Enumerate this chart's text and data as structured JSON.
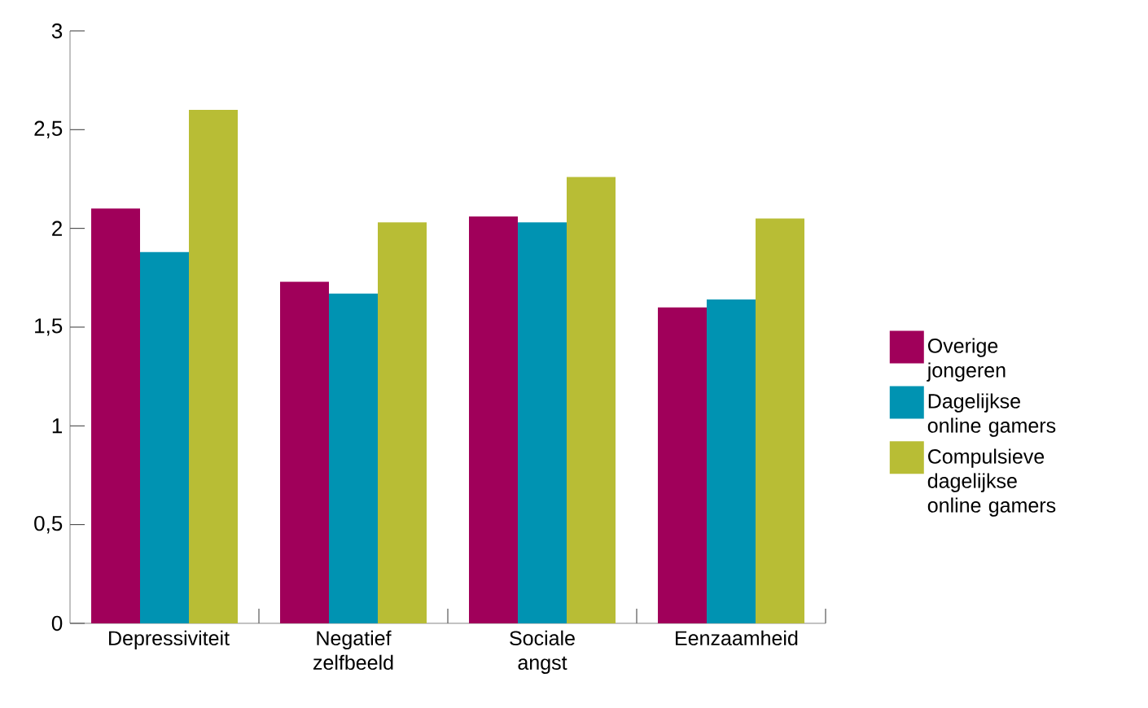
{
  "chart_data": {
    "type": "bar",
    "categories": [
      "Depressiviteit",
      "Negatief zelfbeeld",
      "Sociale angst",
      "Eenzaamheid"
    ],
    "series": [
      {
        "name": "Overige jongeren",
        "color": "#a0005a",
        "values": [
          2.1,
          1.73,
          2.06,
          1.6
        ]
      },
      {
        "name": "Dagelijkse online gamers",
        "color": "#0093b2",
        "values": [
          1.88,
          1.67,
          2.03,
          1.64
        ]
      },
      {
        "name": "Compulsieve dagelijkse online gamers",
        "color": "#b8bd35",
        "values": [
          2.6,
          2.03,
          2.26,
          2.05
        ]
      }
    ],
    "ylim": [
      0,
      3
    ],
    "yticks": [
      0,
      {
        "value": 0.5,
        "label": "0,5"
      },
      1,
      {
        "value": 1.5,
        "label": "1,5"
      },
      2,
      {
        "value": 2.5,
        "label": "2,5"
      },
      3
    ],
    "grid": false,
    "legend": "right"
  }
}
